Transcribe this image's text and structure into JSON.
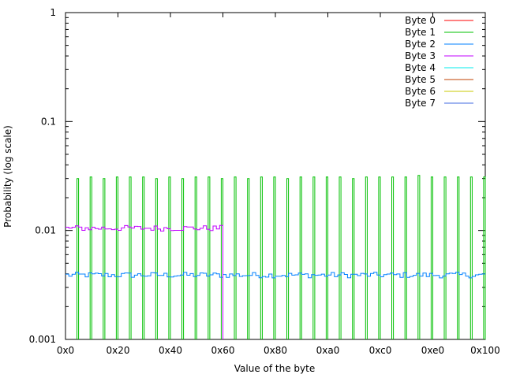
{
  "chart_data": {
    "type": "line",
    "title": "",
    "xlabel": "Value of the byte",
    "ylabel": "Probability (log scale)",
    "xlim": [
      0,
      256
    ],
    "ylim": [
      0.001,
      1
    ],
    "y_scale": "log",
    "grid": false,
    "legend_position": "top-right",
    "x_ticks": [
      {
        "value": 0,
        "label": "0x0"
      },
      {
        "value": 32,
        "label": "0x20"
      },
      {
        "value": 64,
        "label": "0x40"
      },
      {
        "value": 96,
        "label": "0x60"
      },
      {
        "value": 128,
        "label": "0x80"
      },
      {
        "value": 160,
        "label": "0xa0"
      },
      {
        "value": 192,
        "label": "0xc0"
      },
      {
        "value": 224,
        "label": "0xe0"
      },
      {
        "value": 256,
        "label": "0x100"
      }
    ],
    "y_ticks": [
      {
        "value": 1,
        "label": "1"
      },
      {
        "value": 0.1,
        "label": "0.1"
      },
      {
        "value": 0.01,
        "label": "0.01"
      },
      {
        "value": 0.001,
        "label": "0.001"
      }
    ],
    "series": [
      {
        "name": "Byte 0",
        "color": "#ff0000",
        "style": "none",
        "level": 0
      },
      {
        "name": "Byte 1",
        "color": "#00c000",
        "style": "spikes",
        "spike_start": 8,
        "spike_step": 8,
        "spike_count": 32,
        "spike_values": [
          0.03,
          0.031,
          0.03,
          0.031,
          0.031,
          0.031,
          0.03,
          0.031,
          0.03,
          0.031,
          0.031,
          0.03,
          0.031,
          0.03,
          0.031,
          0.031,
          0.03,
          0.031,
          0.031,
          0.031,
          0.031,
          0.03,
          0.031,
          0.031,
          0.031,
          0.031,
          0.032,
          0.031,
          0.031,
          0.031,
          0.031,
          0.031
        ]
      },
      {
        "name": "Byte 2",
        "color": "#0080ff",
        "style": "noise",
        "level": 0.0039,
        "x_from": 0,
        "x_to": 256
      },
      {
        "name": "Byte 3",
        "color": "#c000ff",
        "style": "noise",
        "level": 0.0105,
        "x_from": 0,
        "x_to": 96,
        "drop_at": 96
      },
      {
        "name": "Byte 4",
        "color": "#00eeee",
        "style": "none",
        "level": 0
      },
      {
        "name": "Byte 5",
        "color": "#c04000",
        "style": "none",
        "level": 0
      },
      {
        "name": "Byte 6",
        "color": "#c8c800",
        "style": "none",
        "level": 0
      },
      {
        "name": "Byte 7",
        "color": "#4169e1",
        "style": "none",
        "level": 0
      }
    ]
  }
}
